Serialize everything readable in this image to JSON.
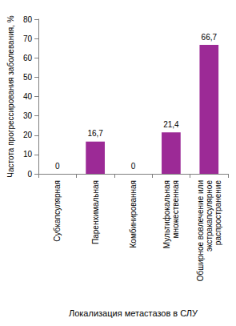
{
  "chart_data": {
    "type": "bar",
    "categories": [
      "Субкапсулярная",
      "Паренхимальная",
      "Комбинированная",
      "Мультифокальная множественная",
      "Обширное вовлечение или экстракапсулярное распространение"
    ],
    "values": [
      0,
      16.7,
      0,
      21.4,
      66.7
    ],
    "value_labels": [
      "0",
      "16,7",
      "0",
      "21,4",
      "66,7"
    ],
    "color": "#9c2a96",
    "x_label": "Локализация метастазов в СЛУ",
    "y_label": "Частота прогрессирования заболевания, %",
    "ylim": [
      0,
      80
    ],
    "yticks": [
      0,
      10,
      20,
      30,
      40,
      50,
      60,
      70,
      80
    ],
    "grid": false,
    "data_labels": true
  }
}
